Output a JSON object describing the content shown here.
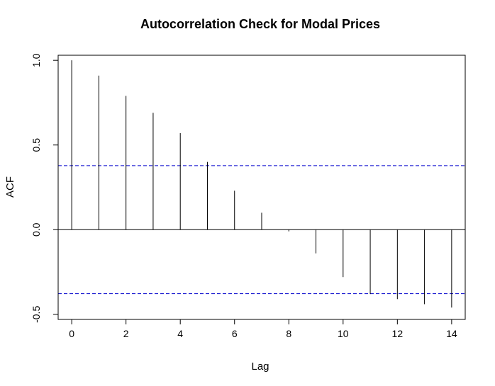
{
  "chart_data": {
    "type": "bar",
    "title": "Autocorrelation Check for Modal Prices",
    "xlabel": "Lag",
    "ylabel": "ACF",
    "x": [
      0,
      1,
      2,
      3,
      4,
      5,
      6,
      7,
      8,
      9,
      10,
      11,
      12,
      13,
      14
    ],
    "values": [
      1.0,
      0.91,
      0.79,
      0.69,
      0.57,
      0.4,
      0.23,
      0.1,
      -0.01,
      -0.14,
      -0.28,
      -0.38,
      -0.41,
      -0.44,
      -0.46
    ],
    "xticks": [
      "0",
      "2",
      "4",
      "6",
      "8",
      "10",
      "12",
      "14"
    ],
    "yticks": [
      "-0.5",
      "0.0",
      "0.5",
      "1.0"
    ],
    "xlim": [
      -0.5,
      14.5
    ],
    "ylim": [
      -0.53,
      1.03
    ],
    "confidence_bound": 0.378,
    "grid": false,
    "colors": {
      "bars": "#000000",
      "confidence_lines": "#0000cc",
      "zero_line": "#000000"
    }
  }
}
